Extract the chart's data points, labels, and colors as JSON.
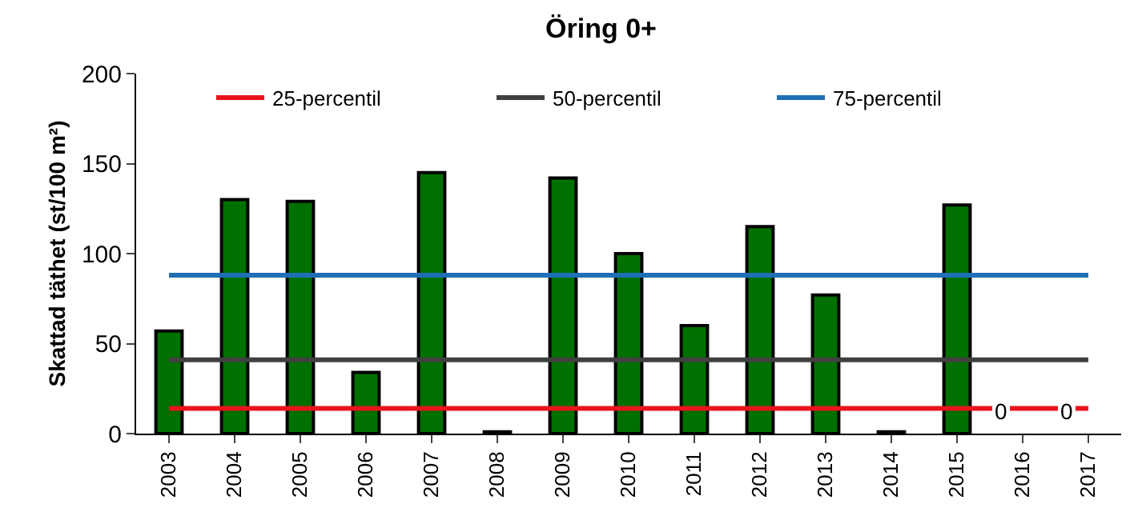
{
  "chart_data": {
    "type": "bar",
    "title": "Öring 0+",
    "ylabel": "Skattad täthet (st/100 m²)",
    "categories": [
      "2003",
      "2004",
      "2005",
      "2006",
      "2007",
      "2008",
      "2009",
      "2010",
      "2011",
      "2012",
      "2013",
      "2014",
      "2015",
      "2016",
      "2017"
    ],
    "series": [
      {
        "color": "#007000",
        "values": [
          57,
          130,
          129,
          34,
          145,
          1,
          142,
          100,
          60,
          115,
          77,
          1,
          127,
          0,
          0
        ],
        "value_labels": [
          null,
          null,
          null,
          null,
          null,
          null,
          null,
          null,
          null,
          null,
          null,
          null,
          null,
          "0",
          "0"
        ]
      },
      {
        "type": "line",
        "name": "25-percentil",
        "color": "#e8141c",
        "values": [
          14,
          14,
          14,
          14,
          14,
          14,
          14,
          14,
          14,
          14,
          14,
          14,
          14,
          14,
          14
        ]
      },
      {
        "type": "line",
        "name": "50-percentil",
        "color": "#404040",
        "values": [
          41,
          41,
          41,
          41,
          41,
          41,
          41,
          41,
          41,
          41,
          41,
          41,
          41,
          41,
          41
        ]
      },
      {
        "type": "line",
        "name": "75-percentil",
        "color": "#1f6fb4",
        "values": [
          88,
          88,
          88,
          88,
          88,
          88,
          88,
          88,
          88,
          88,
          88,
          88,
          88,
          88,
          88
        ]
      }
    ],
    "ylim": [
      0,
      200
    ],
    "yticks": [
      0,
      50,
      100,
      150,
      200
    ],
    "grid": false,
    "legend": "top",
    "marker": "none",
    "line_style": "solid"
  }
}
